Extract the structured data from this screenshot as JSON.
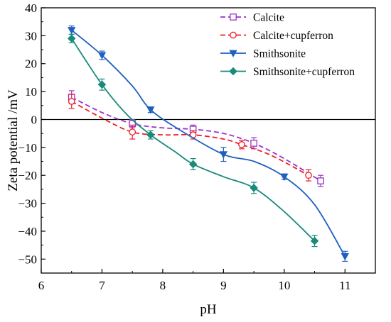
{
  "chart_data": {
    "type": "line",
    "xlabel": "pH",
    "ylabel": "Zeta potential /mV",
    "xlim": [
      6,
      11.5
    ],
    "ylim": [
      -55,
      40
    ],
    "xticks": [
      6,
      7,
      8,
      9,
      10,
      11
    ],
    "yticks": [
      40,
      30,
      20,
      10,
      0,
      -10,
      -20,
      -30,
      -40,
      -50
    ],
    "zero_line": true,
    "grid": false,
    "legend_position": "top-right",
    "series": [
      {
        "name": "Calcite",
        "color": "#9933cc",
        "line_style": "dashed",
        "marker": "open-square",
        "points": [
          {
            "x": 6.5,
            "y": 8.0,
            "err": 2.3
          },
          {
            "x": 7.5,
            "y": -1.5,
            "err": 1.5
          },
          {
            "x": 8.5,
            "y": -3.5,
            "err": 1.5
          },
          {
            "x": 9.5,
            "y": -8.5,
            "err": 2.0
          },
          {
            "x": 10.6,
            "y": -22.0,
            "err": 2.0
          }
        ],
        "curve": [
          [
            6.5,
            8.0
          ],
          [
            7.0,
            2.5
          ],
          [
            7.5,
            -1.5
          ],
          [
            8.0,
            -3.0
          ],
          [
            8.5,
            -3.5
          ],
          [
            9.0,
            -5.0
          ],
          [
            9.5,
            -8.5
          ],
          [
            10.0,
            -14.0
          ],
          [
            10.6,
            -22.0
          ]
        ]
      },
      {
        "name": "Calcite+cupferron",
        "color": "#ee1c25",
        "line_style": "dashed",
        "marker": "open-circle",
        "points": [
          {
            "x": 6.5,
            "y": 6.5,
            "err": 2.5
          },
          {
            "x": 7.5,
            "y": -4.5,
            "err": 2.5
          },
          {
            "x": 8.5,
            "y": -5.5,
            "err": 1.5
          },
          {
            "x": 9.3,
            "y": -9.0,
            "err": 1.5
          },
          {
            "x": 10.4,
            "y": -20.0,
            "err": 2.0
          }
        ],
        "curve": [
          [
            6.5,
            6.5
          ],
          [
            7.0,
            0.5
          ],
          [
            7.5,
            -4.5
          ],
          [
            8.0,
            -5.5
          ],
          [
            8.5,
            -5.5
          ],
          [
            9.0,
            -7.0
          ],
          [
            9.3,
            -9.0
          ],
          [
            9.8,
            -13.0
          ],
          [
            10.4,
            -20.0
          ]
        ]
      },
      {
        "name": "Smithsonite",
        "color": "#1f5fbf",
        "line_style": "solid",
        "marker": "filled-triangle-down",
        "points": [
          {
            "x": 6.5,
            "y": 32.0,
            "err": 1.5
          },
          {
            "x": 7.0,
            "y": 23.0,
            "err": 1.5
          },
          {
            "x": 7.8,
            "y": 3.5,
            "err": 1.0
          },
          {
            "x": 9.0,
            "y": -12.5,
            "err": 2.5
          },
          {
            "x": 10.0,
            "y": -20.5,
            "err": 1.0
          },
          {
            "x": 11.0,
            "y": -49.0,
            "err": 1.8
          }
        ],
        "curve": [
          [
            6.5,
            32.0
          ],
          [
            7.0,
            23.0
          ],
          [
            7.5,
            12.0
          ],
          [
            7.8,
            3.5
          ],
          [
            8.3,
            -4.0
          ],
          [
            9.0,
            -12.5
          ],
          [
            9.5,
            -15.0
          ],
          [
            10.0,
            -20.5
          ],
          [
            10.5,
            -30.5
          ],
          [
            11.0,
            -49.0
          ]
        ]
      },
      {
        "name": "Smithsonite+cupferron",
        "color": "#1a8a7a",
        "line_style": "solid",
        "marker": "filled-diamond",
        "points": [
          {
            "x": 6.5,
            "y": 29.0,
            "err": 1.5
          },
          {
            "x": 7.0,
            "y": 12.5,
            "err": 2.0
          },
          {
            "x": 7.8,
            "y": -5.5,
            "err": 1.5
          },
          {
            "x": 8.5,
            "y": -16.0,
            "err": 2.0
          },
          {
            "x": 9.5,
            "y": -24.5,
            "err": 2.0
          },
          {
            "x": 10.5,
            "y": -43.5,
            "err": 2.0
          }
        ],
        "curve": [
          [
            6.5,
            29.0
          ],
          [
            7.0,
            12.5
          ],
          [
            7.4,
            2.0
          ],
          [
            7.8,
            -5.5
          ],
          [
            8.2,
            -11.5
          ],
          [
            8.5,
            -16.0
          ],
          [
            9.0,
            -20.5
          ],
          [
            9.5,
            -24.5
          ],
          [
            10.0,
            -33.0
          ],
          [
            10.5,
            -43.5
          ]
        ]
      }
    ]
  }
}
